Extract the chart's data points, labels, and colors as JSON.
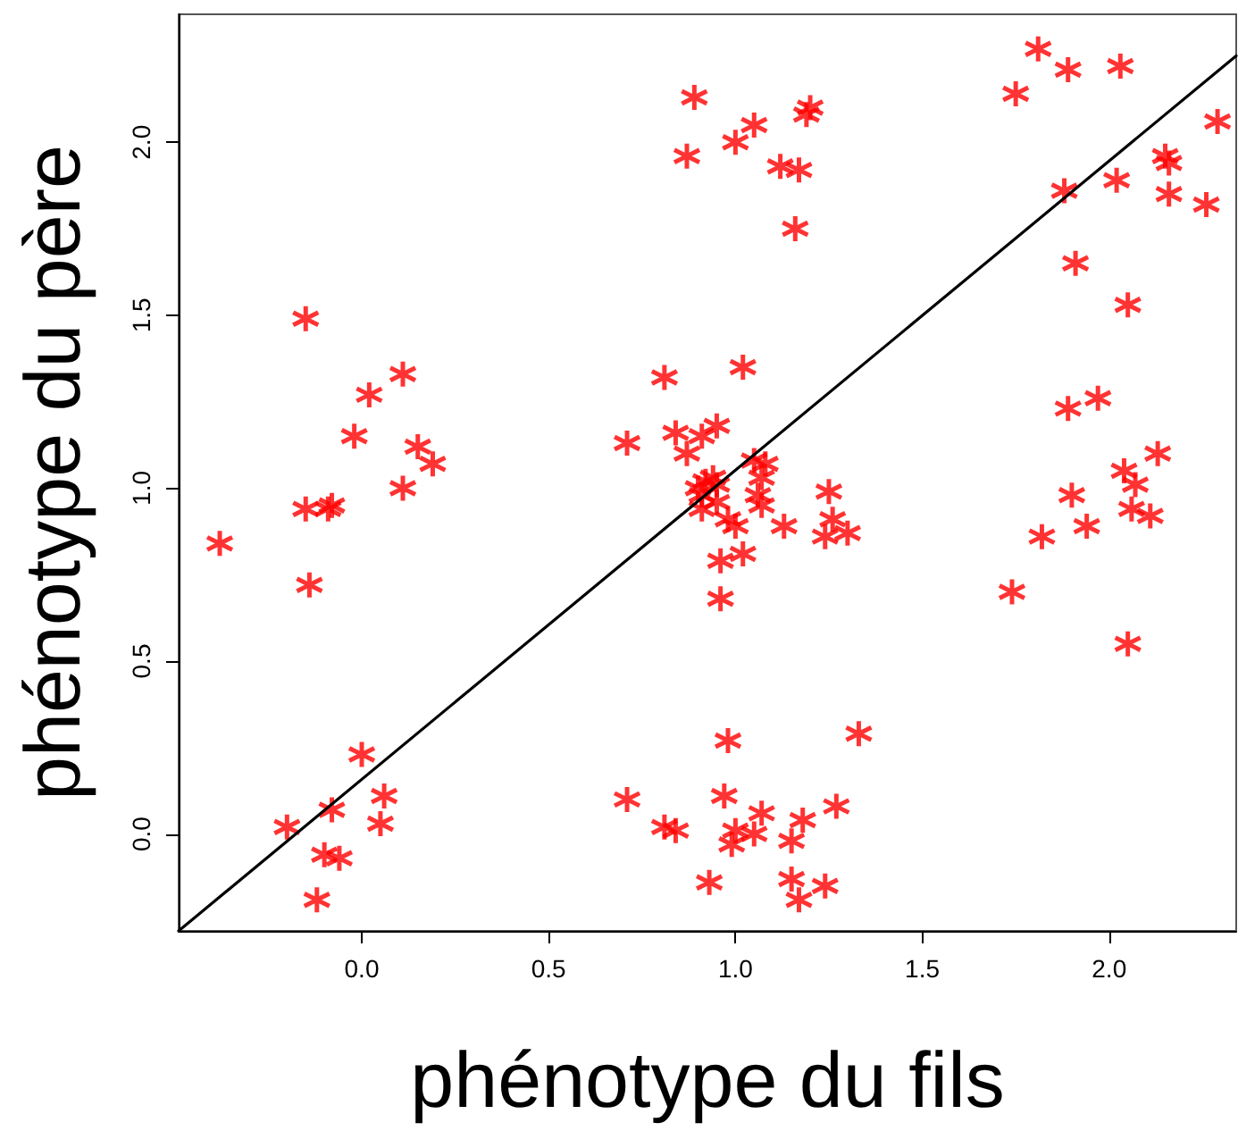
{
  "chart_data": {
    "type": "scatter",
    "xlabel": "phénotype du fils",
    "ylabel": "phénotype du père",
    "xlim": [
      -0.49,
      2.34
    ],
    "ylim": [
      -0.28,
      2.37
    ],
    "xticks": [
      {
        "value": 0,
        "label": "0.0"
      },
      {
        "value": 0.5,
        "label": "0.5"
      },
      {
        "value": 1,
        "label": "1.0"
      },
      {
        "value": 1.5,
        "label": "1.5"
      },
      {
        "value": 2,
        "label": "2.0"
      }
    ],
    "yticks": [
      {
        "value": 0,
        "label": "0.0"
      },
      {
        "value": 0.5,
        "label": "0.5"
      },
      {
        "value": 1,
        "label": "1.0"
      },
      {
        "value": 1.5,
        "label": "1.5"
      },
      {
        "value": 2,
        "label": "2.0"
      }
    ],
    "grid": false,
    "series": [
      {
        "marker": "cross",
        "color": "#ff0000",
        "x": [
          -0.38,
          -0.15,
          -0.15,
          -0.08,
          -0.09,
          -0.14,
          -0.02,
          0.02,
          0.11,
          0.11,
          0.15,
          0.19,
          0.0,
          0.06,
          0.05,
          -0.08,
          -0.2,
          -0.1,
          -0.06,
          -0.12,
          0.89,
          0.87,
          1.0,
          1.05,
          1.19,
          1.2,
          1.12,
          1.17,
          1.16,
          0.81,
          1.02,
          0.71,
          0.84,
          0.91,
          0.95,
          0.87,
          0.92,
          0.94,
          0.9,
          0.95,
          0.91,
          0.91,
          0.95,
          0.98,
          1.0,
          1.08,
          1.05,
          1.07,
          1.06,
          1.07,
          1.13,
          1.25,
          1.26,
          1.24,
          1.3,
          0.96,
          1.02,
          0.96,
          0.98,
          1.33,
          0.71,
          0.97,
          1.07,
          1.0,
          1.05,
          0.99,
          0.81,
          0.84,
          1.18,
          1.15,
          1.27,
          0.93,
          1.15,
          1.24,
          1.17,
          1.81,
          1.75,
          1.89,
          2.03,
          2.29,
          2.15,
          2.16,
          2.02,
          1.88,
          2.16,
          2.26,
          1.91,
          2.05,
          1.97,
          1.89,
          2.13,
          2.04,
          2.07,
          1.9,
          2.06,
          2.11,
          1.94,
          1.82,
          1.74,
          2.05
        ],
        "values": [
          0.84,
          1.49,
          0.94,
          0.95,
          0.94,
          0.72,
          1.15,
          1.27,
          1.33,
          1.0,
          1.12,
          1.07,
          0.23,
          0.11,
          0.03,
          0.07,
          0.02,
          -0.06,
          -0.07,
          -0.19,
          2.13,
          1.96,
          2.0,
          2.05,
          2.08,
          2.1,
          1.93,
          1.92,
          1.75,
          1.32,
          1.35,
          1.13,
          1.16,
          1.15,
          1.18,
          1.1,
          1.02,
          1.03,
          1.0,
          1.01,
          0.98,
          0.94,
          0.96,
          0.91,
          0.89,
          1.07,
          1.08,
          1.03,
          0.98,
          0.95,
          0.89,
          0.99,
          0.91,
          0.86,
          0.87,
          0.79,
          0.81,
          0.68,
          0.27,
          0.29,
          0.1,
          0.11,
          0.06,
          0.01,
          0.0,
          -0.03,
          0.02,
          0.01,
          0.04,
          -0.02,
          0.08,
          -0.14,
          -0.13,
          -0.15,
          -0.19,
          2.27,
          2.14,
          2.21,
          2.22,
          2.06,
          1.96,
          1.94,
          1.89,
          1.86,
          1.85,
          1.82,
          1.65,
          1.53,
          1.26,
          1.23,
          1.1,
          1.05,
          1.01,
          0.98,
          0.94,
          0.92,
          0.89,
          0.86,
          0.7,
          0.55
        ]
      },
      {
        "type": "line",
        "marker": "none",
        "color": "#000000",
        "x": [
          -0.49,
          2.34
        ],
        "values": [
          -0.28,
          2.25
        ]
      }
    ]
  }
}
